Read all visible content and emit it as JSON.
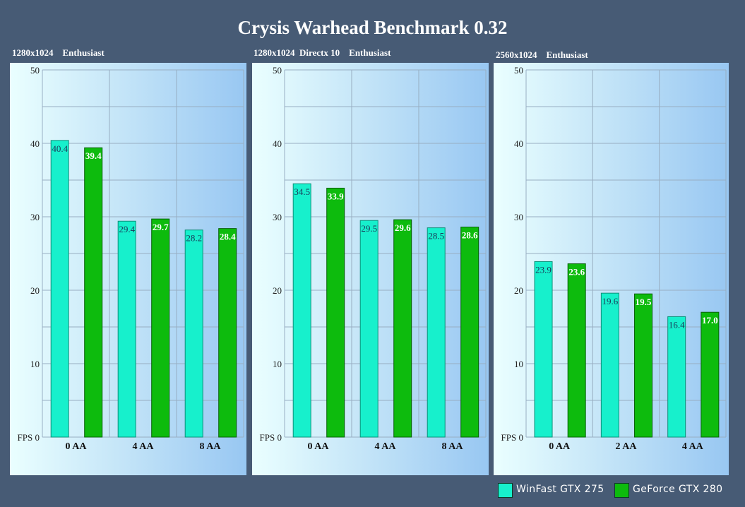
{
  "title": "Crysis Warhead Benchmark 0.32",
  "colors": {
    "background": "#475b75",
    "series_0": "#17f0cc",
    "series_1": "#0dbb0d"
  },
  "legend": [
    {
      "name": "WinFast GTX 275",
      "color": "#17f0cc"
    },
    {
      "name": "GeForce GTX 280",
      "color": "#0dbb0d"
    }
  ],
  "chart_data": [
    {
      "type": "bar",
      "title": "1280x1024    Enthusiast",
      "ylabel": "FPS",
      "ylim": [
        0,
        50
      ],
      "yticks": [
        0,
        10,
        20,
        30,
        40,
        50
      ],
      "grid": true,
      "legend_position": "bottom-right",
      "categories": [
        "0 AA",
        "4 AA",
        "8 AA"
      ],
      "series": [
        {
          "name": "WinFast GTX 275",
          "values": [
            40.4,
            29.4,
            28.2
          ]
        },
        {
          "name": "GeForce GTX 280",
          "values": [
            39.4,
            29.7,
            28.4
          ]
        }
      ]
    },
    {
      "type": "bar",
      "title": "1280x1024  Directx 10    Enthusiast",
      "ylabel": "FPS",
      "ylim": [
        0,
        50
      ],
      "yticks": [
        0,
        10,
        20,
        30,
        40,
        50
      ],
      "grid": true,
      "legend_position": "bottom-right",
      "categories": [
        "0 AA",
        "4 AA",
        "8 AA"
      ],
      "series": [
        {
          "name": "WinFast GTX 275",
          "values": [
            34.5,
            29.5,
            28.5
          ]
        },
        {
          "name": "GeForce GTX 280",
          "values": [
            33.9,
            29.6,
            28.6
          ]
        }
      ]
    },
    {
      "type": "bar",
      "title": "2560x1024    Enthusiast",
      "ylabel": "FPS",
      "ylim": [
        0,
        50
      ],
      "yticks": [
        0,
        10,
        20,
        30,
        40,
        50
      ],
      "grid": true,
      "legend_position": "bottom-right",
      "categories": [
        "0 AA",
        "2 AA",
        "4 AA"
      ],
      "series": [
        {
          "name": "WinFast GTX 275",
          "values": [
            23.9,
            19.6,
            16.4
          ]
        },
        {
          "name": "GeForce GTX 280",
          "values": [
            23.6,
            19.5,
            17.0
          ]
        }
      ]
    }
  ]
}
